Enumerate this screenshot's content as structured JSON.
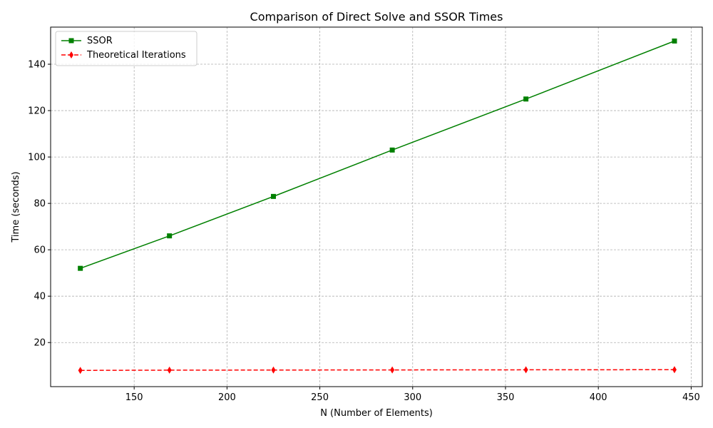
{
  "chart_data": {
    "type": "line",
    "title": "Comparison of Direct Solve and SSOR Times",
    "xlabel": "N (Number of Elements)",
    "ylabel": "Time (seconds)",
    "xlim": [
      105,
      456
    ],
    "ylim": [
      1,
      156
    ],
    "xticks": [
      150,
      200,
      250,
      300,
      350,
      400,
      450
    ],
    "yticks": [
      20,
      40,
      60,
      80,
      100,
      120,
      140
    ],
    "grid": true,
    "legend_position": "upper-left",
    "x": [
      121,
      169,
      225,
      289,
      361,
      441
    ],
    "series": [
      {
        "name": "SSOR",
        "values": [
          52,
          66,
          83,
          103,
          125,
          150
        ],
        "color": "#008000",
        "line_style": "solid",
        "marker": "square"
      },
      {
        "name": "Theoretical Iterations",
        "values": [
          8.0,
          8.1,
          8.15,
          8.2,
          8.25,
          8.3
        ],
        "color": "#ff0000",
        "line_style": "dashed",
        "marker": "diamond"
      }
    ]
  }
}
